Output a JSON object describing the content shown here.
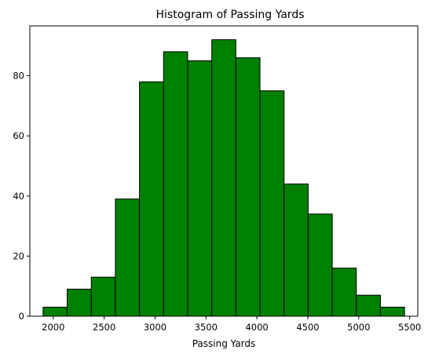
{
  "chart_data": {
    "type": "bar",
    "title": "Histogram of Passing Yards",
    "xlabel": "Passing Yards",
    "ylabel": "",
    "bar_color": "#008000",
    "edge_color": "#000000",
    "bin_edges": [
      1900,
      2136.67,
      2373.33,
      2610,
      2846.67,
      3083.33,
      3320,
      3556.67,
      3793.33,
      4030,
      4266.67,
      4503.33,
      4740,
      4976.67,
      5213.33,
      5450
    ],
    "values": [
      3,
      9,
      13,
      39,
      78,
      88,
      85,
      92,
      86,
      75,
      44,
      34,
      16,
      7,
      3
    ],
    "xlim": [
      1770,
      5580
    ],
    "ylim": [
      0,
      96.6
    ],
    "xticks": [
      2000,
      2500,
      3000,
      3500,
      4000,
      4500,
      5000,
      5500
    ],
    "yticks": [
      0,
      20,
      40,
      60,
      80
    ],
    "grid": false,
    "legend": "none"
  }
}
